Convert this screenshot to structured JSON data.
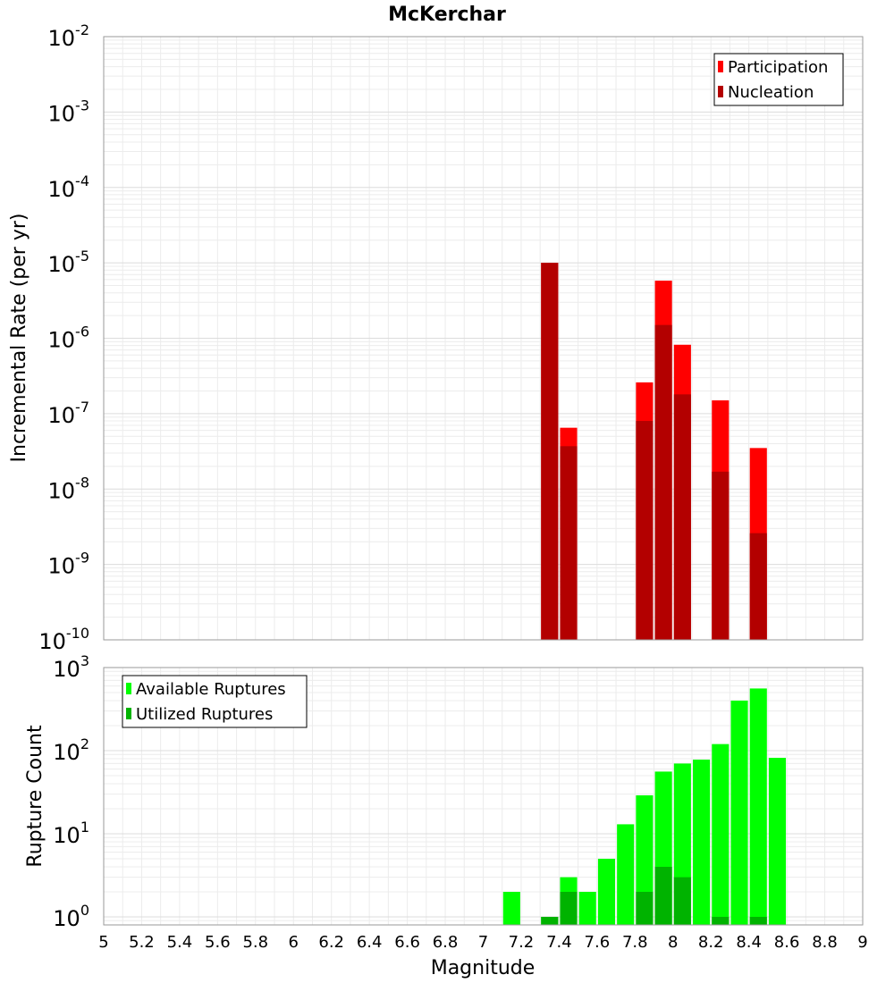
{
  "chart_data": [
    {
      "type": "bar",
      "title": "McKerchar",
      "xlabel": "",
      "ylabel": "Incremental Rate (per yr)",
      "yscale": "log",
      "ylim": [
        1e-10,
        0.01
      ],
      "xlim": [
        5,
        9
      ],
      "grid": true,
      "legend_position": "top-right",
      "y_ticks": [
        {
          "base": "10",
          "exp": "-10"
        },
        {
          "base": "10",
          "exp": "-9"
        },
        {
          "base": "10",
          "exp": "-8"
        },
        {
          "base": "10",
          "exp": "-7"
        },
        {
          "base": "10",
          "exp": "-6"
        },
        {
          "base": "10",
          "exp": "-5"
        },
        {
          "base": "10",
          "exp": "-4"
        },
        {
          "base": "10",
          "exp": "-3"
        },
        {
          "base": "10",
          "exp": "-2"
        }
      ],
      "bar_width": 0.09,
      "series": [
        {
          "name": "Participation",
          "color": "#ff0000",
          "points": [
            {
              "x": 7.35,
              "y": 1e-05
            },
            {
              "x": 7.45,
              "y": 6.5e-08
            },
            {
              "x": 7.85,
              "y": 2.6e-07
            },
            {
              "x": 7.95,
              "y": 5.8e-06
            },
            {
              "x": 8.05,
              "y": 8.2e-07
            },
            {
              "x": 8.25,
              "y": 1.5e-07
            },
            {
              "x": 8.45,
              "y": 3.5e-08
            }
          ]
        },
        {
          "name": "Nucleation",
          "color": "#b30000",
          "points": [
            {
              "x": 7.35,
              "y": 1e-05
            },
            {
              "x": 7.45,
              "y": 3.7e-08
            },
            {
              "x": 7.85,
              "y": 8e-08
            },
            {
              "x": 7.95,
              "y": 1.5e-06
            },
            {
              "x": 8.05,
              "y": 1.8e-07
            },
            {
              "x": 8.25,
              "y": 1.7e-08
            },
            {
              "x": 8.45,
              "y": 2.6e-09
            }
          ]
        }
      ]
    },
    {
      "type": "bar",
      "title": "",
      "xlabel": "Magnitude",
      "ylabel": "Rupture Count",
      "yscale": "log",
      "ylim": [
        0.8,
        1000
      ],
      "xlim": [
        5,
        9
      ],
      "grid": true,
      "legend_position": "top-left",
      "x_ticks": [
        "5",
        "5.2",
        "5.4",
        "5.6",
        "5.8",
        "6",
        "6.2",
        "6.4",
        "6.6",
        "6.8",
        "7",
        "7.2",
        "7.4",
        "7.6",
        "7.8",
        "8",
        "8.2",
        "8.4",
        "8.6",
        "8.8",
        "9"
      ],
      "y_ticks": [
        {
          "base": "10",
          "exp": "0"
        },
        {
          "base": "10",
          "exp": "1"
        },
        {
          "base": "10",
          "exp": "2"
        },
        {
          "base": "10",
          "exp": "3"
        }
      ],
      "bar_width": 0.09,
      "series": [
        {
          "name": "Available Ruptures",
          "color": "#00ff00",
          "points": [
            {
              "x": 7.15,
              "y": 2
            },
            {
              "x": 7.35,
              "y": 1
            },
            {
              "x": 7.45,
              "y": 3
            },
            {
              "x": 7.55,
              "y": 2
            },
            {
              "x": 7.65,
              "y": 5
            },
            {
              "x": 7.75,
              "y": 13
            },
            {
              "x": 7.85,
              "y": 29
            },
            {
              "x": 7.95,
              "y": 56
            },
            {
              "x": 8.05,
              "y": 70
            },
            {
              "x": 8.15,
              "y": 78
            },
            {
              "x": 8.25,
              "y": 120
            },
            {
              "x": 8.35,
              "y": 400
            },
            {
              "x": 8.45,
              "y": 560
            },
            {
              "x": 8.55,
              "y": 82
            }
          ]
        },
        {
          "name": "Utilized Ruptures",
          "color": "#00b300",
          "points": [
            {
              "x": 7.35,
              "y": 1
            },
            {
              "x": 7.45,
              "y": 2
            },
            {
              "x": 7.85,
              "y": 2
            },
            {
              "x": 7.95,
              "y": 4
            },
            {
              "x": 8.05,
              "y": 3
            },
            {
              "x": 8.25,
              "y": 1
            },
            {
              "x": 8.45,
              "y": 1
            }
          ]
        }
      ]
    }
  ]
}
